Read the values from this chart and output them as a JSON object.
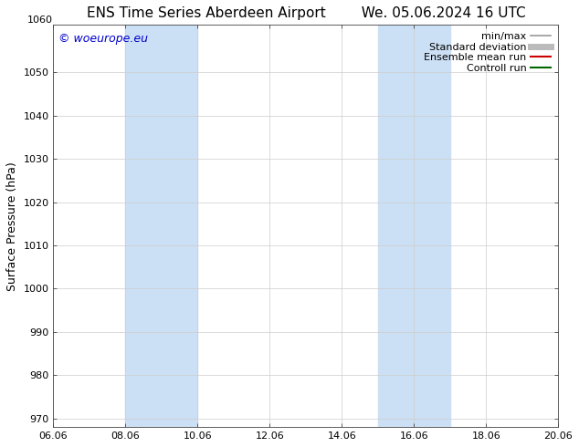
{
  "title_left": "ENS Time Series Aberdeen Airport",
  "title_right": "We. 05.06.2024 16 UTC",
  "ylabel": "Surface Pressure (hPa)",
  "ylim": [
    968,
    1061
  ],
  "yticks": [
    970,
    980,
    990,
    1000,
    1010,
    1020,
    1030,
    1040,
    1050,
    1060
  ],
  "ytick_top_label": "1060",
  "xtick_labels": [
    "06.06",
    "08.06",
    "10.06",
    "12.06",
    "14.06",
    "16.06",
    "18.06",
    "20.06"
  ],
  "xtick_positions": [
    0,
    2,
    4,
    6,
    8,
    10,
    12,
    14
  ],
  "xlim": [
    0,
    14
  ],
  "shaded_bands": [
    {
      "x_start": 2,
      "x_end": 4,
      "color": "#cce0f5"
    },
    {
      "x_start": 9,
      "x_end": 11,
      "color": "#cce0f5"
    }
  ],
  "watermark_text": "© woeurope.eu",
  "watermark_color": "#0000cc",
  "legend_entries": [
    {
      "label": "min/max",
      "color": "#999999",
      "lw": 1.2
    },
    {
      "label": "Standard deviation",
      "color": "#bbbbbb",
      "lw": 5
    },
    {
      "label": "Ensemble mean run",
      "color": "#cc0000",
      "lw": 1.5
    },
    {
      "label": "Controll run",
      "color": "#006600",
      "lw": 1.5
    }
  ],
  "grid_color": "#cccccc",
  "bg_color": "#ffffff",
  "plot_bg_color": "#ffffff",
  "title_fontsize": 11,
  "tick_fontsize": 8,
  "ylabel_fontsize": 9,
  "watermark_fontsize": 9,
  "legend_fontsize": 8
}
